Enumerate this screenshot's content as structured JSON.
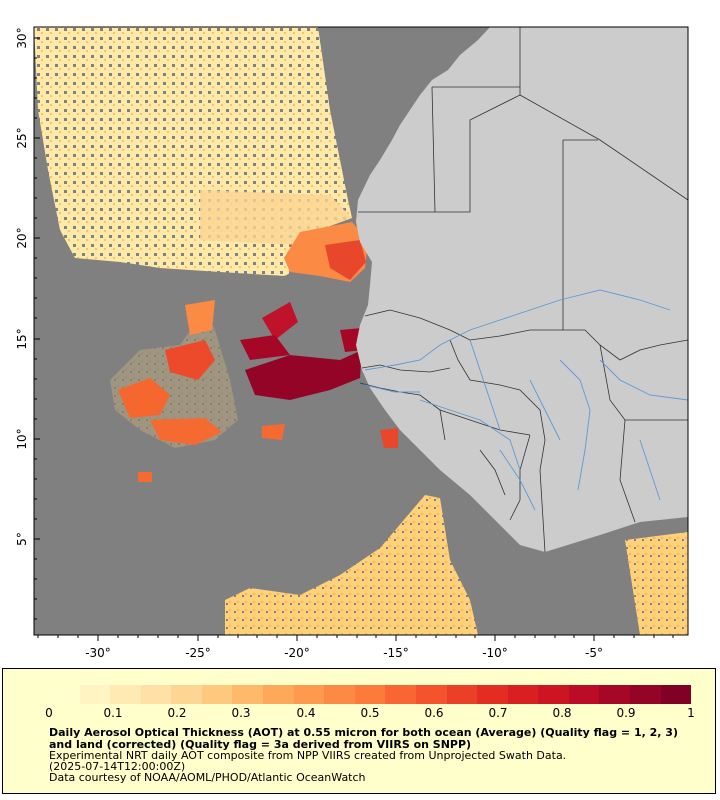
{
  "map": {
    "lat_labels": [
      "30°",
      "25°",
      "20°",
      "15°",
      "10°",
      "5°"
    ],
    "lon_labels": [
      "-30°",
      "-25°",
      "-20°",
      "-15°",
      "-10°",
      "-5°"
    ],
    "colors": {
      "no_data": "#808080",
      "land": "#cccccc",
      "border": "#333333",
      "river": "#5b9bd5",
      "low": "#ffebaa",
      "high": "#800026"
    }
  },
  "legend": {
    "ticks": [
      "0",
      "0.1",
      "0.2",
      "0.3",
      "0.4",
      "0.5",
      "0.6",
      "0.7",
      "0.8",
      "0.9",
      "1"
    ],
    "title": "Daily Aerosol Optical Thickness (AOT) at 0.55 micron for both ocean (Average) (Quality flag = 1, 2, 3) and land (corrected) (Quality flag = 3a derived from VIIRS on SNPP)",
    "line1": "Experimental NRT daily AOT composite from NPP VIIRS created from Unprojected Swath Data.",
    "line2": "(2025-07-14T12:00:00Z)",
    "line3": "Data courtesy of NOAA/AOML/PHOD/Atlantic OceanWatch",
    "colors": [
      "#fffecc",
      "#fff4c2",
      "#ffeab4",
      "#ffe0a6",
      "#fed693",
      "#fec97f",
      "#feb96a",
      "#fea85a",
      "#fd9a4e",
      "#fd8a44",
      "#fc7a3a",
      "#f96633",
      "#f4532d",
      "#ec3f27",
      "#e42d22",
      "#d91f21",
      "#cc1423",
      "#bc0b26",
      "#a70726",
      "#930426",
      "#800026"
    ]
  }
}
